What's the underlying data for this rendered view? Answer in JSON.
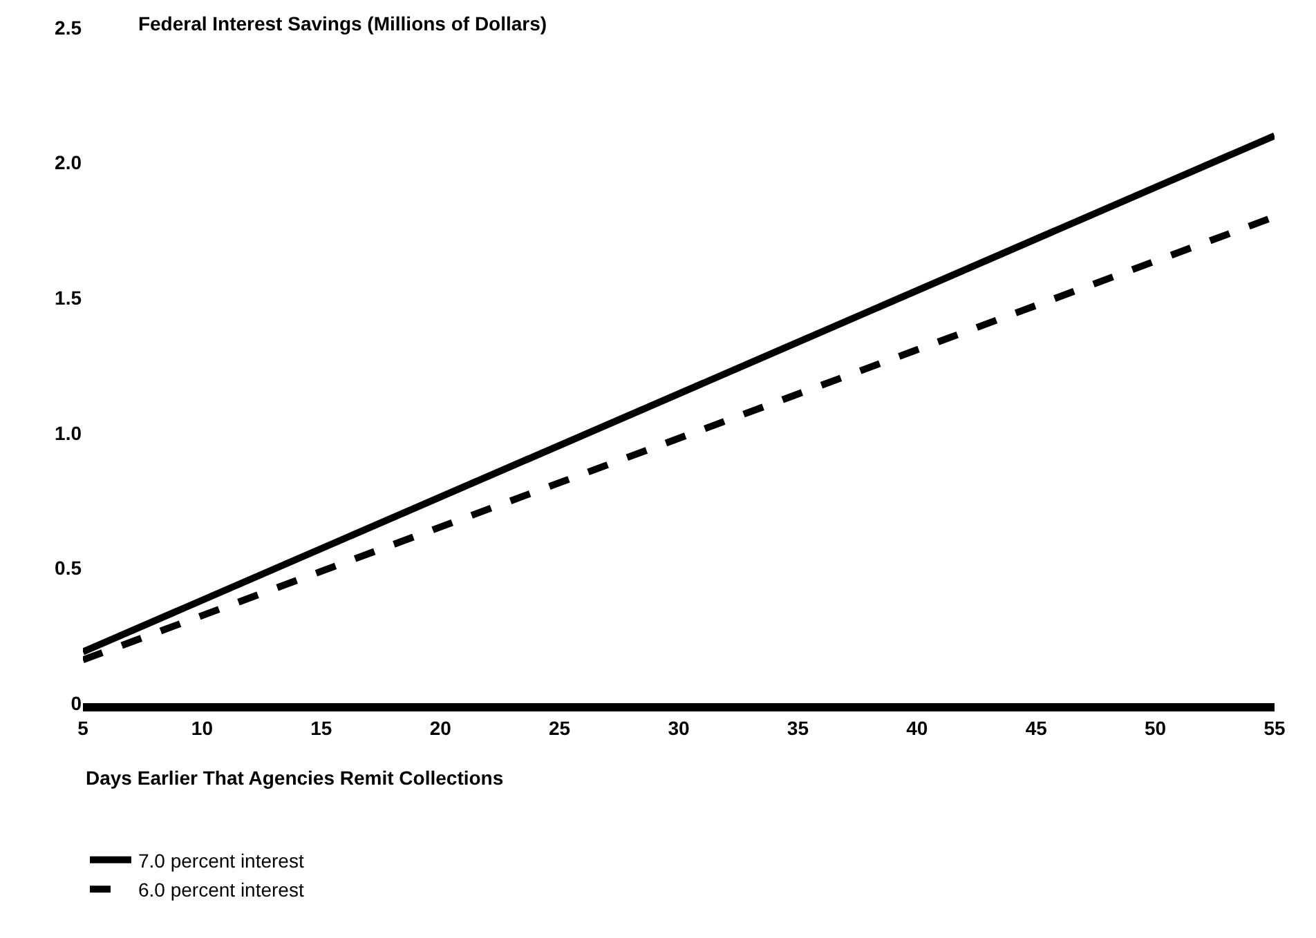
{
  "chart_data": {
    "type": "line",
    "title": "Federal Interest Savings (Millions of Dollars)",
    "xlabel": "Days Earlier That Agencies Remit Collections",
    "x": [
      5,
      55
    ],
    "series": [
      {
        "name": "7.0 percent interest",
        "color": "#000000",
        "values": [
          0.19,
          2.1
        ],
        "line_style": "solid"
      },
      {
        "name": "6.0 percent interest",
        "color": "#000000",
        "values": [
          0.16,
          1.8
        ],
        "line_style": "dashed"
      }
    ],
    "xlim": [
      5,
      55
    ],
    "xticks": [
      5,
      10,
      15,
      20,
      25,
      30,
      35,
      40,
      45,
      50,
      55
    ],
    "ylim": [
      0,
      2.5
    ],
    "yticks": [
      {
        "value": 0,
        "label": "0"
      },
      {
        "value": 0.5,
        "label": "0.5"
      },
      {
        "value": 1.0,
        "label": "1.0"
      },
      {
        "value": 1.5,
        "label": "1.5"
      },
      {
        "value": 2.0,
        "label": "2.0"
      },
      {
        "value": 2.5,
        "label": "2.5"
      }
    ],
    "legend": "bottom left",
    "marker": "none"
  }
}
